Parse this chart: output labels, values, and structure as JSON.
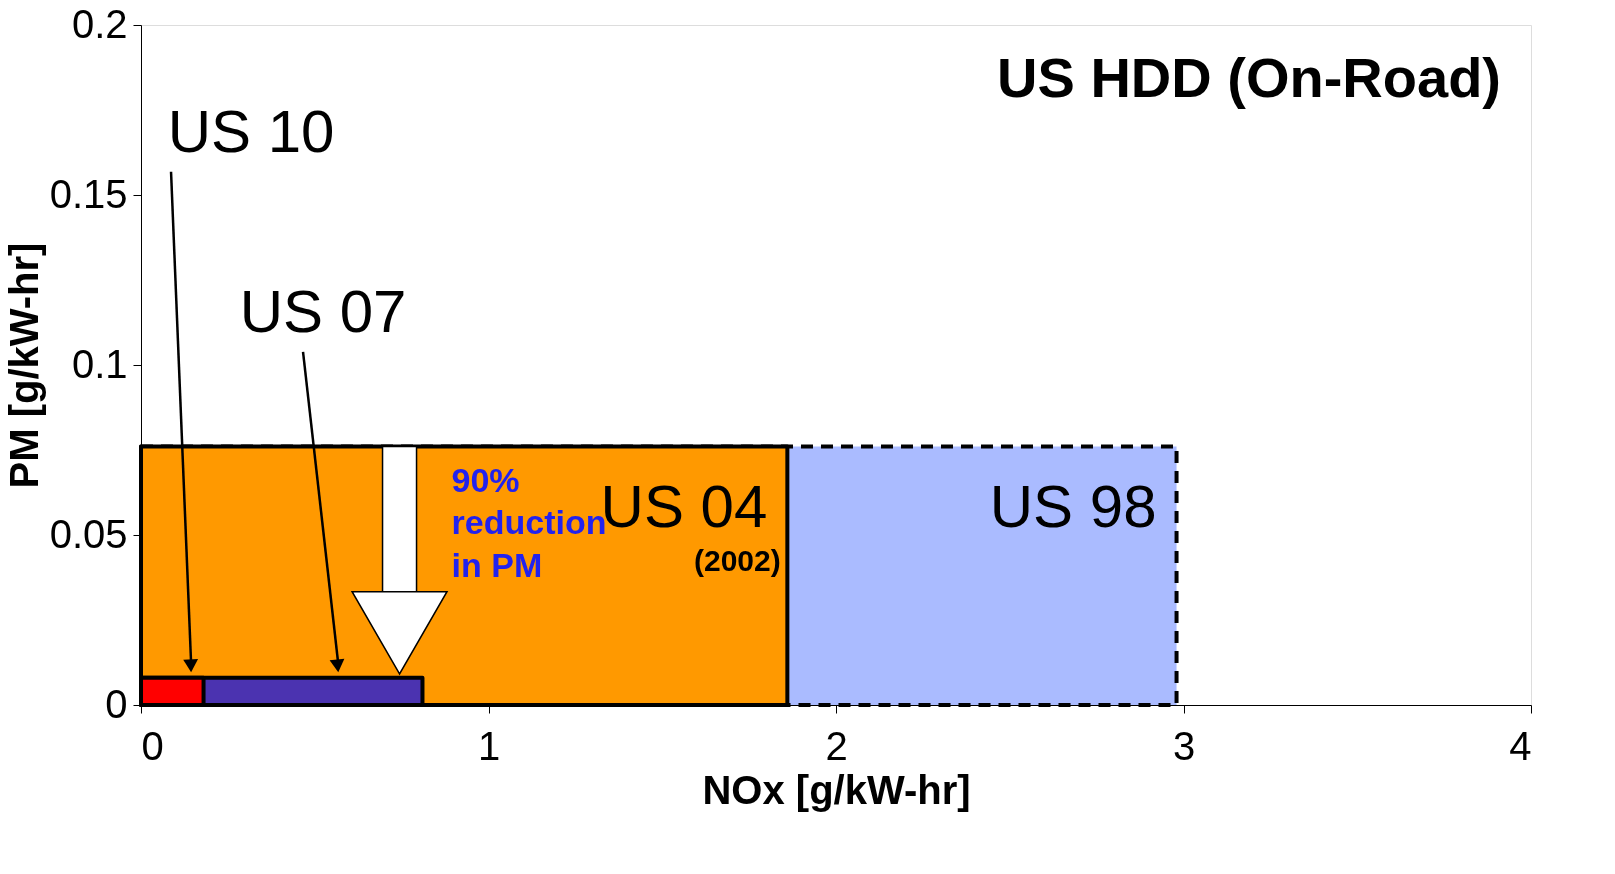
{
  "chart_data": {
    "type": "area",
    "title": "US HDD (On-Road)",
    "xlabel": "NOx [g/kW-hr]",
    "ylabel": "PM [g/kW-hr]",
    "xlim": [
      0,
      4
    ],
    "xticks": [
      0,
      1,
      2,
      3,
      4
    ],
    "ylim": [
      0,
      0.2
    ],
    "yticks": [
      0,
      0.05,
      0.1,
      0.15,
      0.2
    ],
    "grid": false,
    "legend": false,
    "series": [
      {
        "name": "US 98",
        "color": "#aabbff",
        "x": [
          0,
          2.98
        ],
        "values": [
          0.076,
          0.076
        ],
        "line_style": "dashed"
      },
      {
        "name": "US 04",
        "color": "#ff9900",
        "x": [
          0,
          1.86
        ],
        "values": [
          0.076,
          0.076
        ],
        "line_style": "solid"
      },
      {
        "color": "#4b33b0",
        "x": [
          0,
          0.81
        ],
        "values": [
          0.008,
          0.008
        ],
        "line_style": "solid"
      },
      {
        "color": "#ff0000",
        "x": [
          0,
          0.18
        ],
        "values": [
          0.008,
          0.008
        ],
        "line_style": "solid"
      }
    ],
    "annotations": [
      "(2002)",
      "90%\nreduction\nin PM",
      "US 10",
      "US 07"
    ]
  }
}
